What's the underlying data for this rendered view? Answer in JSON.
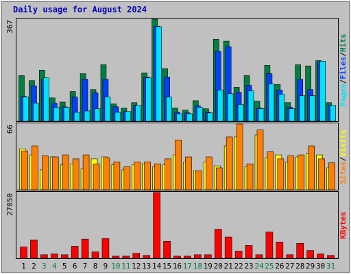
{
  "title": "Daily usage for August 2024",
  "legend_separator": "/",
  "chart_data": [
    {
      "type": "bar",
      "ylim": [
        0,
        367
      ],
      "yticks": [
        367
      ],
      "series": [
        {
          "name": "Hits",
          "color": "#008040",
          "values": [
            164,
            146,
            184,
            84,
            69,
            107,
            171,
            114,
            203,
            62,
            47,
            67,
            174,
            367,
            189,
            47,
            40,
            74,
            45,
            295,
            288,
            122,
            164,
            72,
            201,
            132,
            67,
            203,
            199,
            218,
            67
          ]
        },
        {
          "name": "Files",
          "color": "#0040ff",
          "values": [
            89,
            127,
            151,
            65,
            52,
            87,
            151,
            102,
            151,
            52,
            35,
            57,
            159,
            342,
            159,
            32,
            30,
            55,
            32,
            251,
            268,
            104,
            129,
            47,
            171,
            112,
            50,
            151,
            114,
            213,
            57
          ]
        },
        {
          "name": "Pages",
          "color": "#00e0ff",
          "values": [
            87,
            65,
            156,
            50,
            50,
            32,
            37,
            45,
            87,
            32,
            35,
            57,
            156,
            340,
            87,
            27,
            27,
            50,
            30,
            112,
            99,
            60,
            109,
            45,
            134,
            97,
            45,
            92,
            92,
            216,
            57
          ]
        }
      ]
    },
    {
      "type": "bar",
      "ylim": [
        0,
        66
      ],
      "yticks": [
        66
      ],
      "series": [
        {
          "name": "Visits",
          "color": "#ffff00",
          "values": [
            41,
            35,
            20,
            33,
            25,
            26,
            21,
            31,
            33,
            25,
            20,
            25,
            26,
            23,
            25,
            35,
            28,
            19,
            28,
            24,
            44,
            53,
            23,
            55,
            32,
            35,
            28,
            33,
            36,
            35,
            22
          ]
        },
        {
          "name": "Sites",
          "color": "#ff8000",
          "values": [
            39,
            44,
            34,
            33,
            35,
            31,
            35,
            26,
            32,
            28,
            23,
            28,
            28,
            26,
            31,
            50,
            33,
            19,
            33,
            22,
            53,
            66,
            26,
            60,
            38,
            31,
            34,
            35,
            44,
            31,
            27
          ]
        }
      ]
    },
    {
      "type": "bar",
      "ylim": [
        0,
        27050
      ],
      "yticks": [
        27050
      ],
      "categories": [
        "1",
        "2",
        "3",
        "4",
        "5",
        "6",
        "7",
        "8",
        "9",
        "10",
        "11",
        "12",
        "13",
        "14",
        "15",
        "16",
        "17",
        "18",
        "19",
        "20",
        "21",
        "22",
        "23",
        "24",
        "25",
        "26",
        "27",
        "28",
        "29",
        "30",
        "31"
      ],
      "category_colors": [
        "#000000",
        "#000000",
        "#008040",
        "#008040",
        "#000000",
        "#000000",
        "#000000",
        "#000000",
        "#000000",
        "#008040",
        "#008040",
        "#000000",
        "#000000",
        "#000000",
        "#000000",
        "#000000",
        "#008040",
        "#008040",
        "#000000",
        "#000000",
        "#000000",
        "#000000",
        "#000000",
        "#008040",
        "#008040",
        "#000000",
        "#000000",
        "#000000",
        "#000000",
        "#000000",
        "#008040"
      ],
      "series": [
        {
          "name": "KBytes",
          "color": "#ff0000",
          "values": [
            4650,
            7560,
            1450,
            1750,
            1450,
            4950,
            7850,
            2600,
            8140,
            870,
            870,
            2030,
            1160,
            27050,
            6980,
            870,
            870,
            1450,
            1450,
            11930,
            8730,
            2910,
            5240,
            1450,
            10760,
            6690,
            1450,
            6110,
            3200,
            1750,
            1160
          ]
        }
      ]
    }
  ]
}
